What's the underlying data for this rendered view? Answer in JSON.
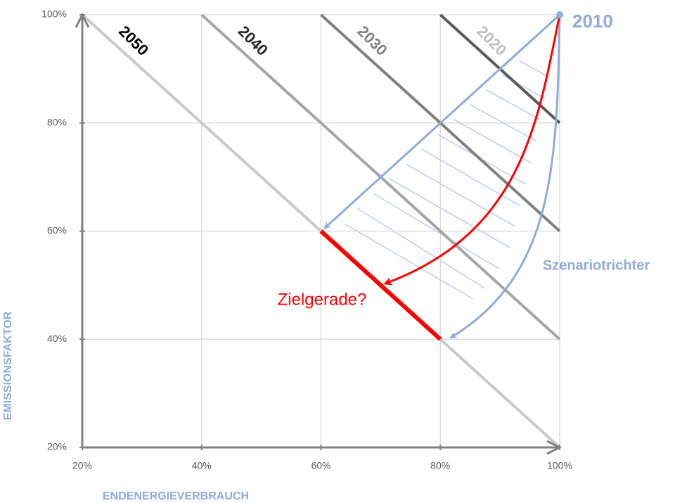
{
  "chart_data": {
    "type": "line",
    "xlabel": "ENDENERGIEVERBRAUCH",
    "ylabel": "EMISSIONSFAKTOR",
    "xlim": [
      20,
      100
    ],
    "ylim": [
      20,
      100
    ],
    "xticks": [
      {
        "value": 20,
        "label": "20%"
      },
      {
        "value": 40,
        "label": "40%"
      },
      {
        "value": 60,
        "label": "60%"
      },
      {
        "value": 80,
        "label": "80%"
      },
      {
        "value": 100,
        "label": "100%"
      }
    ],
    "yticks": [
      {
        "value": 20,
        "label": "20%"
      },
      {
        "value": 40,
        "label": "40%"
      },
      {
        "value": 60,
        "label": "60%"
      },
      {
        "value": 80,
        "label": "80%"
      },
      {
        "value": 100,
        "label": "100%"
      }
    ],
    "grid": true,
    "series": [
      {
        "name": "2050",
        "color": "#c9c9c9",
        "label_color": "#000000",
        "x": [
          20,
          100
        ],
        "values": [
          100,
          20
        ]
      },
      {
        "name": "2040",
        "color": "#a5a5a5",
        "label_color": "#262626",
        "x": [
          40,
          100
        ],
        "values": [
          100,
          40
        ]
      },
      {
        "name": "2030",
        "color": "#808080",
        "label_color": "#7f7f7f",
        "x": [
          60,
          100
        ],
        "values": [
          100,
          60
        ]
      },
      {
        "name": "2020",
        "color": "#595959",
        "label_color": "#bfbfbf",
        "x": [
          80,
          100
        ],
        "values": [
          100,
          80
        ]
      },
      {
        "name": "Zielgerade?",
        "color": "#ff0000",
        "x": [
          60,
          80
        ],
        "values": [
          60,
          40
        ]
      }
    ],
    "start_point": {
      "label": "2010",
      "x": 100,
      "y": 100,
      "color": "#8faadc"
    },
    "annotations": [
      "Szenariotrichter"
    ]
  }
}
